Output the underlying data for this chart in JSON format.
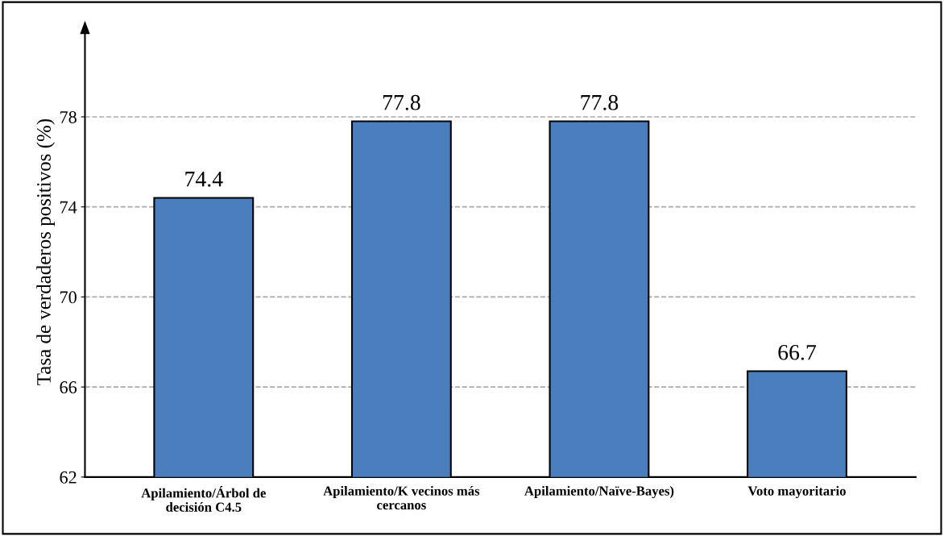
{
  "chart_data": {
    "type": "bar",
    "ylabel": "Tasa de verdaderos positivos (%)",
    "categories": [
      "Apilamiento/Árbol de\ndecisión C4.5",
      "Apilamiento/K vecinos más\ncercanos",
      "Apilamiento/Naïve-Bayes)",
      "Voto mayoritario"
    ],
    "values": [
      74.4,
      77.8,
      77.8,
      66.7
    ],
    "color": "#4a7ebd",
    "ylim": [
      62,
      82
    ],
    "yticks": [
      62,
      66,
      70,
      74,
      78
    ],
    "grid": "y",
    "line_style": "dashed",
    "data_labels": true
  }
}
